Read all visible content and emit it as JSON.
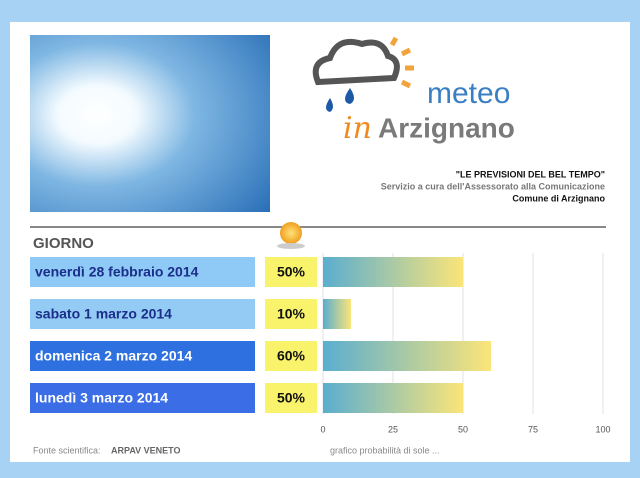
{
  "header": {
    "logo": {
      "word": "meteo",
      "prefix": "in",
      "name": "Arzignano"
    },
    "tagline": "\"LE PREVISIONI DEL BEL TEMPO\"",
    "service": "Servizio a cura dell'Assessorato alla Comunicazione",
    "municipality": "Comune di Arzignano"
  },
  "chart_data": {
    "type": "bar",
    "category_title": "GIORNO",
    "categories": [
      "venerdì 28 febbraio 2014",
      "sabato 1 marzo 2014",
      "domenica 2 marzo 2014",
      "lunedì 3 marzo 2014"
    ],
    "category_colors": [
      "#8fc9f6",
      "#93cbf4",
      "#2f70e0",
      "#3a6de6"
    ],
    "values": [
      50,
      10,
      60,
      50
    ],
    "value_labels": [
      "50%",
      "10%",
      "60%",
      "50%"
    ],
    "xlim": [
      0,
      100
    ],
    "xticks": [
      0,
      25,
      50,
      75,
      100
    ],
    "xlabel": "grafico probabilità di sole ...",
    "grid": true
  },
  "footer": {
    "source_label": "Fonte scientifica:",
    "source": "ARPAV VENETO"
  }
}
